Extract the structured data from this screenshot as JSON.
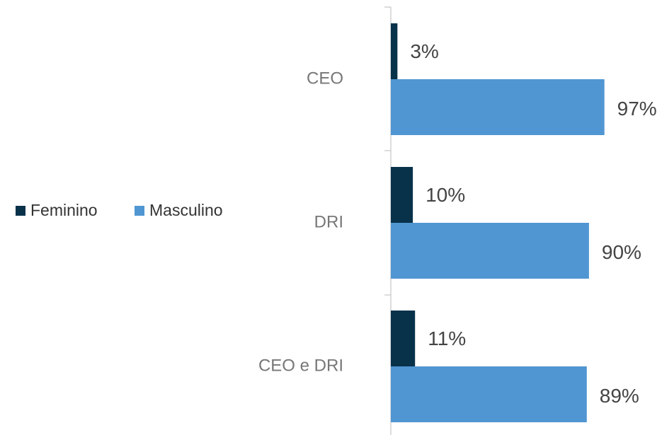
{
  "chart_data": {
    "type": "hbar",
    "categories": [
      "CEO",
      "DRI",
      "CEO e DRI"
    ],
    "series": [
      {
        "name": "Feminino",
        "color": "#08324a",
        "values": [
          3,
          10,
          11
        ],
        "value_labels": [
          "3%",
          "10%",
          "11%"
        ]
      },
      {
        "name": "Masculino",
        "color": "#5096d2",
        "values": [
          97,
          90,
          89
        ],
        "value_labels": [
          "97%",
          "90%",
          "89%"
        ]
      }
    ],
    "xlim": [
      0,
      100
    ],
    "legend": "left"
  }
}
